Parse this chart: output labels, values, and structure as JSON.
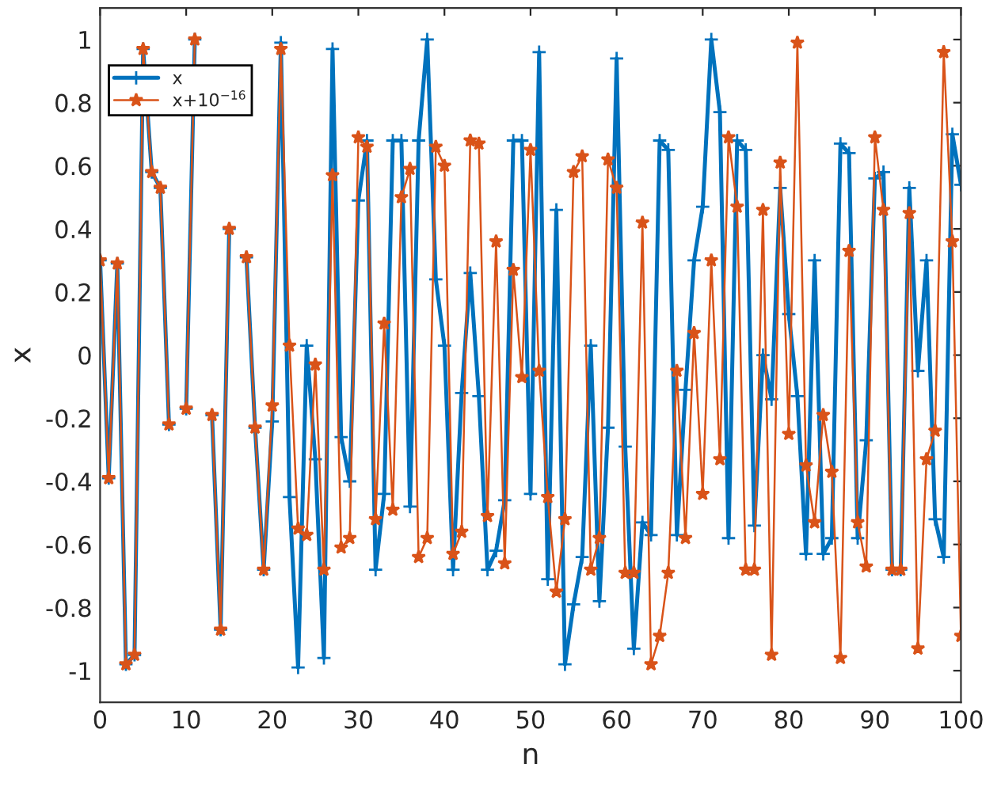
{
  "chart_data": {
    "type": "line",
    "xlabel": "n",
    "ylabel": "x",
    "x": [
      0,
      1,
      2,
      3,
      4,
      5,
      6,
      7,
      8,
      9,
      10,
      11,
      12,
      13,
      14,
      15,
      16,
      17,
      18,
      19,
      20,
      21,
      22,
      23,
      24,
      25,
      26,
      27,
      28,
      29,
      30,
      31,
      32,
      33,
      34,
      35,
      36,
      37,
      38,
      39,
      40,
      41,
      42,
      43,
      44,
      45,
      46,
      47,
      48,
      49,
      50,
      51,
      52,
      53,
      54,
      55,
      56,
      57,
      58,
      59,
      60,
      61,
      62,
      63,
      64,
      65,
      66,
      67,
      68,
      69,
      70,
      71,
      72,
      73,
      74,
      75,
      76,
      77,
      78,
      79,
      80,
      81,
      82,
      83,
      84,
      85,
      86,
      87,
      88,
      89,
      90,
      91,
      92,
      93,
      94,
      95,
      96,
      97,
      98,
      99,
      100
    ],
    "series": [
      {
        "name": "x",
        "color": "#0072bd",
        "marker": "cross",
        "values": [
          0.3,
          -0.39,
          0.29,
          -0.98,
          -0.95,
          0.97,
          0.58,
          0.53,
          -0.22,
          null,
          -0.17,
          1.0,
          null,
          -0.19,
          -0.87,
          0.4,
          null,
          0.31,
          -0.23,
          -0.68,
          -0.21,
          0.99,
          -0.45,
          -0.99,
          0.03,
          -0.33,
          -0.96,
          0.97,
          -0.26,
          -0.4,
          0.49,
          0.68,
          -0.68,
          -0.44,
          0.68,
          0.68,
          -0.48,
          0.68,
          1.0,
          0.24,
          0.03,
          -0.68,
          -0.12,
          0.26,
          -0.13,
          -0.68,
          -0.62,
          -0.46,
          0.68,
          0.68,
          -0.44,
          0.96,
          -0.71,
          0.46,
          -0.98,
          -0.79,
          -0.64,
          0.03,
          -0.78,
          -0.23,
          0.94,
          -0.29,
          -0.93,
          -0.53,
          -0.57,
          0.68,
          0.65,
          -0.57,
          -0.11,
          0.3,
          0.47,
          1.0,
          0.77,
          -0.58,
          0.68,
          0.65,
          -0.54,
          0.0,
          -0.14,
          0.53,
          0.13,
          -0.13,
          -0.63,
          0.3,
          -0.63,
          -0.58,
          0.67,
          0.64,
          -0.58,
          -0.27,
          0.56,
          0.58,
          -0.68,
          -0.68,
          0.53,
          -0.05,
          0.3,
          -0.52,
          -0.64,
          0.7,
          0.54
        ]
      },
      {
        "name": "x+10$^{−16}$",
        "color": "#d95319",
        "marker": "star",
        "values": [
          0.3,
          -0.39,
          0.29,
          -0.98,
          -0.95,
          0.97,
          0.58,
          0.53,
          -0.22,
          null,
          -0.17,
          1.0,
          null,
          -0.19,
          -0.87,
          0.4,
          null,
          0.31,
          -0.23,
          -0.68,
          -0.16,
          0.97,
          0.03,
          -0.55,
          -0.57,
          -0.03,
          -0.68,
          0.57,
          -0.61,
          -0.58,
          0.69,
          0.66,
          -0.52,
          0.1,
          -0.49,
          0.5,
          0.59,
          -0.64,
          -0.58,
          0.66,
          0.6,
          -0.63,
          -0.56,
          0.68,
          0.67,
          -0.51,
          0.36,
          -0.66,
          0.27,
          -0.07,
          0.65,
          -0.05,
          -0.45,
          -0.75,
          -0.52,
          0.58,
          0.63,
          -0.68,
          -0.58,
          0.62,
          0.53,
          -0.69,
          -0.69,
          0.42,
          -0.98,
          -0.89,
          -0.69,
          -0.05,
          -0.58,
          0.07,
          -0.44,
          0.3,
          -0.33,
          0.69,
          0.47,
          -0.68,
          -0.68,
          0.46,
          -0.95,
          0.61,
          -0.25,
          0.99,
          -0.35,
          -0.53,
          -0.19,
          -0.37,
          -0.96,
          0.33,
          -0.53,
          -0.67,
          0.69,
          0.46,
          -0.68,
          -0.68,
          0.45,
          -0.93,
          -0.33,
          -0.24,
          0.96,
          0.36,
          -0.89
        ]
      }
    ],
    "xlim": [
      0,
      100
    ],
    "xticks": [
      0,
      10,
      20,
      30,
      40,
      50,
      60,
      70,
      80,
      90,
      100
    ],
    "ylim": [
      -1.1,
      1.1
    ],
    "yticks": [
      -1,
      -0.8,
      -0.6,
      -0.4,
      -0.2,
      0,
      0.2,
      0.4,
      0.6,
      0.8,
      1
    ],
    "legend": "top left",
    "grid": false,
    "line_style": "solid"
  }
}
